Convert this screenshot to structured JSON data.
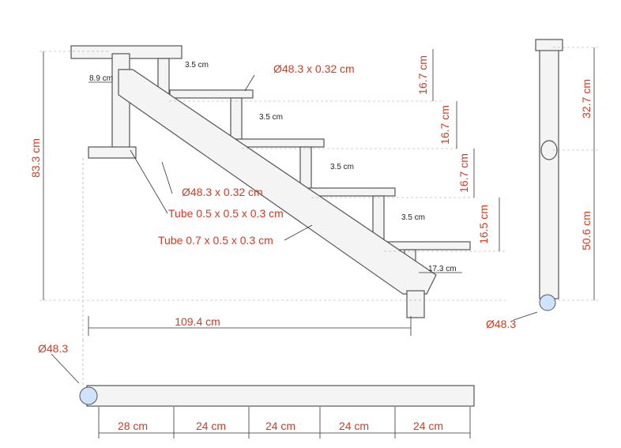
{
  "side_view": {
    "dimensions": {
      "overall_height": "83.3 cm",
      "overall_length": "109.4 cm",
      "offset": "8.9 cm",
      "step_rises": [
        "16.7 cm",
        "16.7 cm",
        "16.7 cm",
        "16.5 cm"
      ],
      "step_gaps": [
        "3.5 cm",
        "3.5 cm",
        "3.5 cm",
        "3.5 cm"
      ],
      "last_step": "17.3 cm"
    },
    "callouts": {
      "top_tube": "Ø48.3 x 0.32 cm",
      "cross_tube": "Ø48.3 x 0.32 cm",
      "tube_small": "Tube 0.5 x 0.5 x 0.3 cm",
      "tube_large": "Tube 0.7 x 0.5 x 0.3 cm"
    }
  },
  "front_view": {
    "upper_height": "32.7 cm",
    "lower_height": "50.6 cm",
    "tube": "Ø48.3"
  },
  "top_view": {
    "tube": "Ø48.3",
    "spacings": [
      "28 cm",
      "24 cm",
      "24 cm",
      "24 cm",
      "24 cm"
    ]
  }
}
